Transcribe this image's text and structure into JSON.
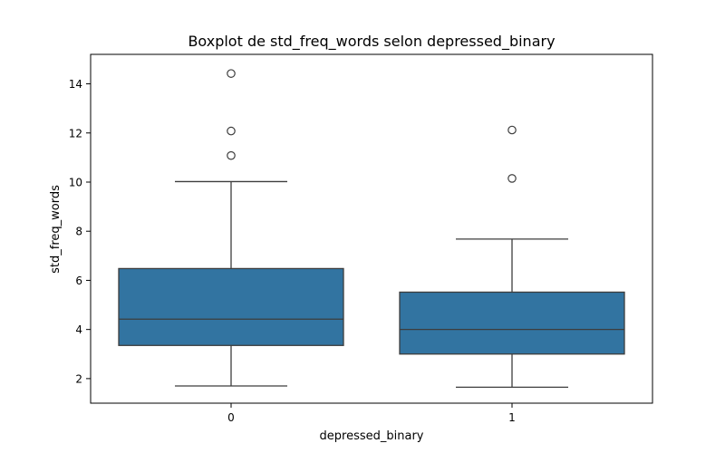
{
  "chart_data": {
    "type": "boxplot",
    "title": "Boxplot de std_freq_words selon depressed_binary",
    "xlabel": "depressed_binary",
    "ylabel": "std_freq_words",
    "ylim": [
      1.0,
      15.2
    ],
    "yticks": [
      2,
      4,
      6,
      8,
      10,
      12,
      14
    ],
    "categories": [
      "0",
      "1"
    ],
    "grid": false,
    "box_color": "#3274a1",
    "line_color": "#3d3d3d",
    "boxes": [
      {
        "category": "0",
        "whisker_low": 1.7,
        "q1": 3.35,
        "median": 4.42,
        "q3": 6.48,
        "whisker_high": 10.02,
        "outliers": [
          11.08,
          12.08,
          14.42
        ]
      },
      {
        "category": "1",
        "whisker_low": 1.65,
        "q1": 3.0,
        "median": 4.0,
        "q3": 5.52,
        "whisker_high": 7.68,
        "outliers": [
          10.15,
          12.12
        ]
      }
    ]
  }
}
